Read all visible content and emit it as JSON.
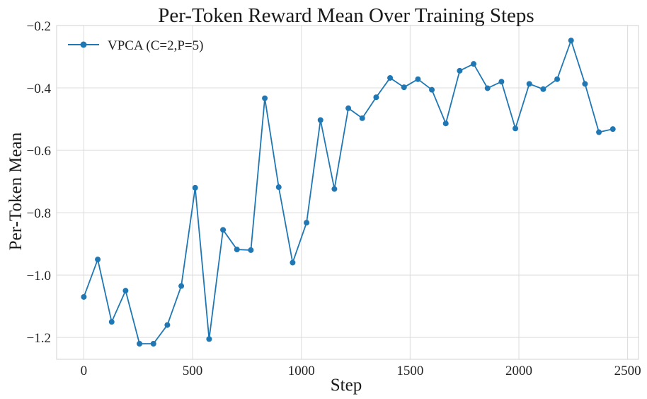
{
  "chart_data": {
    "type": "line",
    "title": "Per-Token Reward Mean Over Training Steps",
    "xlabel": "Step",
    "ylabel": "Per-Token Mean",
    "xlim": [
      -125,
      2550
    ],
    "ylim": [
      -1.27,
      -0.2
    ],
    "xticks": [
      0,
      500,
      1000,
      1500,
      2000,
      2500
    ],
    "xtick_labels": [
      "0",
      "500",
      "1000",
      "1500",
      "2000",
      "2500"
    ],
    "yticks": [
      -1.2,
      -1.0,
      -0.8,
      -0.6,
      -0.4,
      -0.2
    ],
    "ytick_labels": [
      "−1.2",
      "−1.0",
      "−0.8",
      "−0.6",
      "−0.4",
      "−0.2"
    ],
    "grid": true,
    "legend_position": "top-left",
    "series": [
      {
        "name": "VPCA (C=2,P=5)",
        "color": "#1f77b4",
        "marker": "circle",
        "x": [
          0,
          64,
          128,
          192,
          256,
          320,
          384,
          448,
          512,
          576,
          640,
          704,
          768,
          832,
          896,
          960,
          1024,
          1088,
          1152,
          1216,
          1280,
          1344,
          1408,
          1472,
          1536,
          1600,
          1664,
          1728,
          1792,
          1856,
          1920,
          1984,
          2048,
          2112,
          2176,
          2240,
          2304,
          2368,
          2432
        ],
        "y": [
          -1.07,
          -0.95,
          -1.15,
          -1.05,
          -1.22,
          -1.22,
          -1.16,
          -1.035,
          -0.72,
          -1.205,
          -0.855,
          -0.918,
          -0.92,
          -0.433,
          -0.718,
          -0.96,
          -0.832,
          -0.503,
          -0.724,
          -0.465,
          -0.497,
          -0.43,
          -0.368,
          -0.398,
          -0.372,
          -0.406,
          -0.514,
          -0.345,
          -0.323,
          -0.401,
          -0.38,
          -0.53,
          -0.387,
          -0.404,
          -0.372,
          -0.248,
          -0.387,
          -0.542,
          -0.532
        ]
      }
    ]
  }
}
